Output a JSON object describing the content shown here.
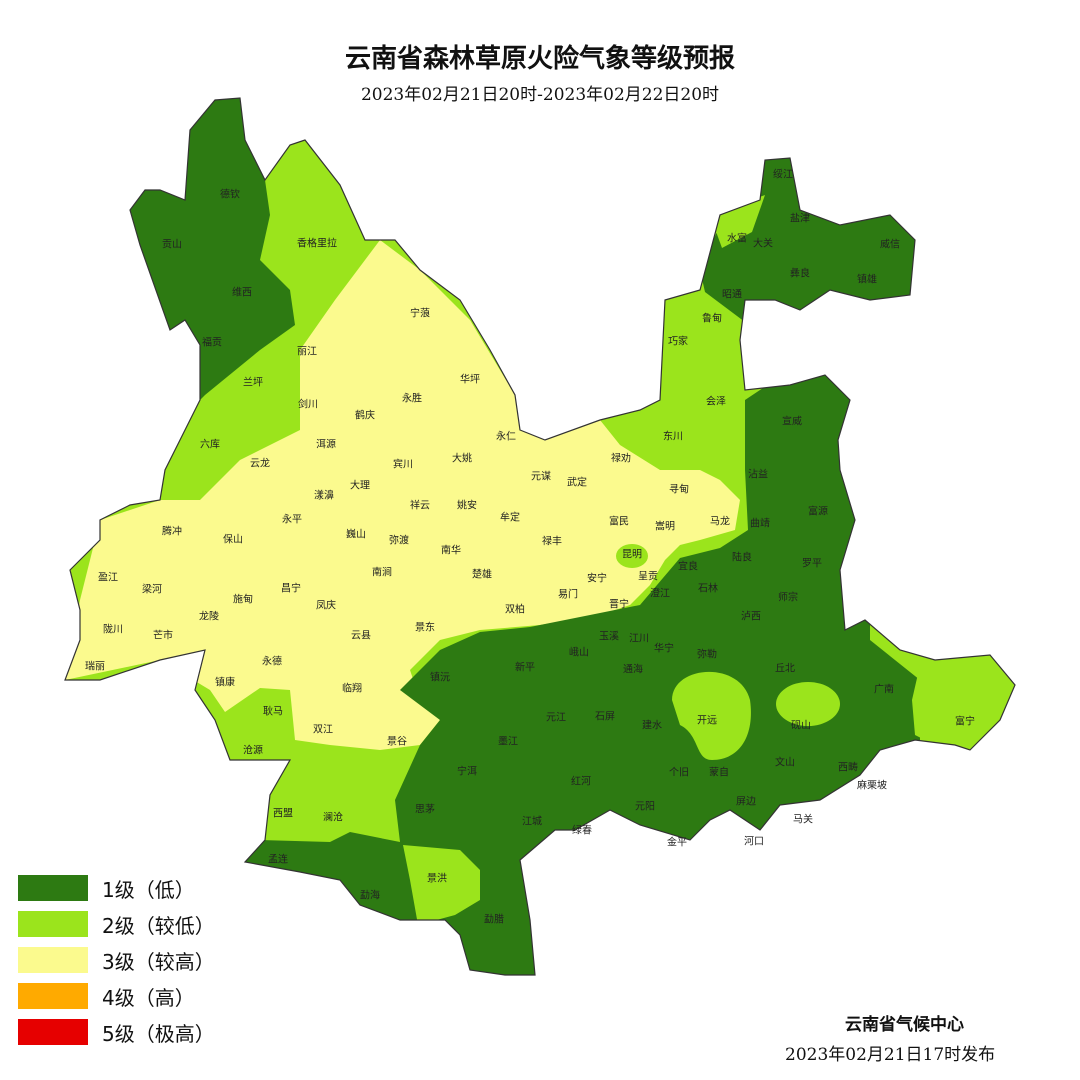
{
  "header": {
    "title": "云南省森林草原火险气象等级预报",
    "subtitle": "2023年02月21日20时-2023年02月22日20时"
  },
  "legend": [
    {
      "label": "1级（低）",
      "color": "#2d7a12"
    },
    {
      "label": "2级（较低）",
      "color": "#9be41c"
    },
    {
      "label": "3级（较高）",
      "color": "#fbfa8e"
    },
    {
      "label": "4级（高）",
      "color": "#ffaa00"
    },
    {
      "label": "5级（极高）",
      "color": "#e60000"
    }
  ],
  "footer": {
    "issuer": "云南省气候中心",
    "issued": "2023年02月21日17时发布"
  },
  "counties": [
    "德钦",
    "贡山",
    "维西",
    "福贡",
    "香格里拉",
    "丽江",
    "兰坪",
    "宁蒗",
    "永胜",
    "华坪",
    "剑川",
    "鹤庆",
    "洱源",
    "宾川",
    "云龙",
    "六库",
    "大理",
    "漾濞",
    "永平",
    "腾冲",
    "保山",
    "巍山",
    "弥渡",
    "祥云",
    "姚安",
    "南华",
    "大姚",
    "永仁",
    "元谋",
    "武定",
    "禄劝",
    "牟定",
    "禄丰",
    "楚雄",
    "双柏",
    "易门",
    "安宁",
    "富民",
    "寻甸",
    "嵩明",
    "马龙",
    "昆明",
    "呈贡",
    "晋宁",
    "盈江",
    "梁河",
    "陇川",
    "芒市",
    "瑞丽",
    "龙陵",
    "施甸",
    "昌宁",
    "南涧",
    "凤庆",
    "云县",
    "景东",
    "永德",
    "镇康",
    "临翔",
    "耿马",
    "双江",
    "沧源",
    "景谷",
    "镇沅",
    "宁洱",
    "新平",
    "元江",
    "墨江",
    "思茅",
    "江城",
    "西盟",
    "澜沧",
    "孟连",
    "勐海",
    "景洪",
    "勐腊",
    "玉溪",
    "江川",
    "华宁",
    "峨山",
    "通海",
    "弥勒",
    "泸西",
    "丘北",
    "广南",
    "富宁",
    "石屏",
    "建水",
    "开远",
    "砚山",
    "个旧",
    "蒙自",
    "文山",
    "西畴",
    "麻栗坡",
    "红河",
    "元阳",
    "屏边",
    "绿春",
    "金平",
    "河口",
    "马关",
    "绥江",
    "盐津",
    "水富",
    "大关",
    "彝良",
    "威信",
    "镇雄",
    "昭通",
    "鲁甸",
    "巧家",
    "会泽",
    "东川",
    "宣威",
    "沾益",
    "曲靖",
    "富源",
    "陆良",
    "罗平",
    "石林",
    "师宗",
    "宜良",
    "澄江"
  ]
}
